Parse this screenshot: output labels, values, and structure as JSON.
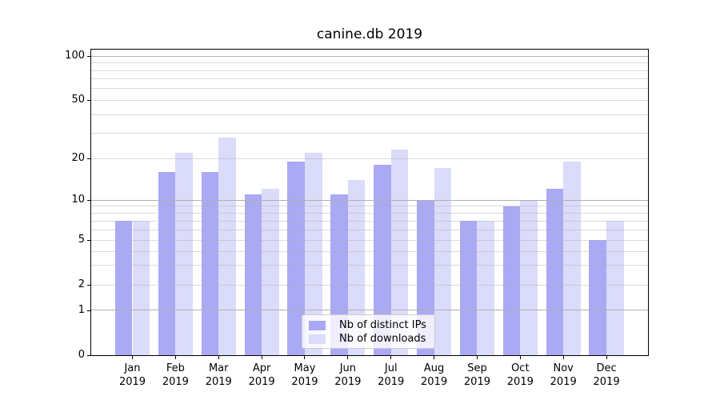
{
  "chart_data": {
    "type": "bar",
    "title": "canine.db 2019",
    "categories": [
      "Jan",
      "Feb",
      "Mar",
      "Apr",
      "May",
      "Jun",
      "Jul",
      "Aug",
      "Sep",
      "Oct",
      "Nov",
      "Dec"
    ],
    "x_tick_second_line": "2019",
    "series": [
      {
        "name": "Nb of distinct IPs",
        "color": "#a9a9f4",
        "values": [
          7,
          16,
          16,
          11,
          19,
          11,
          18,
          10,
          7,
          9,
          12,
          5
        ]
      },
      {
        "name": "Nb of downloads",
        "color": "#dbdbfa",
        "values": [
          7,
          22,
          28,
          12,
          22,
          14,
          23,
          17,
          7,
          10,
          19,
          7
        ]
      }
    ],
    "xlabel": "",
    "ylabel": "",
    "yscale": "log-like with linear zero segment",
    "ylim": [
      0,
      110
    ],
    "y_ticks": [
      0,
      1,
      2,
      5,
      10,
      20,
      50,
      100
    ],
    "y_major_gridlines": [
      1,
      10,
      100
    ],
    "y_minor_gridlines": [
      2,
      3,
      4,
      5,
      6,
      7,
      8,
      9,
      20,
      30,
      40,
      50,
      60,
      70,
      80,
      90
    ],
    "grid": "on",
    "legend": {
      "position": "inside lower-center"
    },
    "colors": {
      "major_grid": "#b0b0b0",
      "minor_grid_alpha_gray": "#b0b0b0",
      "spine": "#000000",
      "text": "#000000",
      "background": "#ffffff"
    }
  }
}
